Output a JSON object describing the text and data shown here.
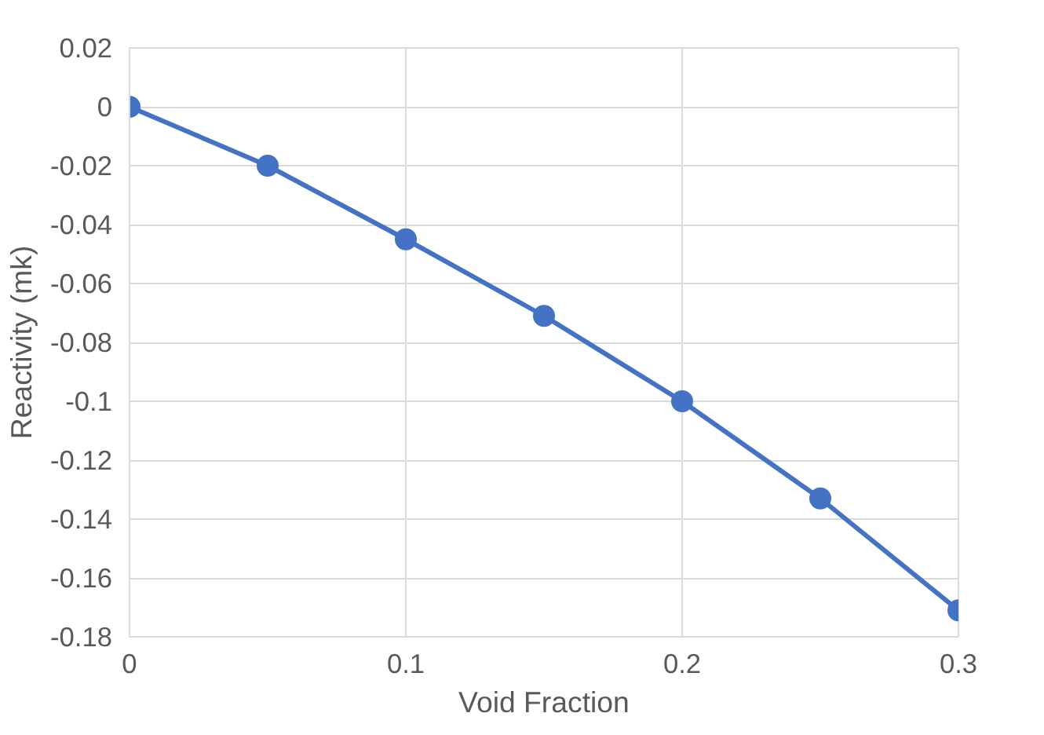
{
  "chart_data": {
    "type": "line",
    "xlabel": "Void Fraction",
    "ylabel": "Reactivity (mk)",
    "x": [
      0,
      0.05,
      0.1,
      0.15,
      0.2,
      0.25,
      0.3
    ],
    "series": [
      {
        "color": "#4472c4",
        "values": [
          0,
          -0.02,
          -0.045,
          -0.071,
          -0.1,
          -0.133,
          -0.171
        ]
      }
    ],
    "xlim": [
      0,
      0.3
    ],
    "ylim": [
      -0.18,
      0.02
    ],
    "xticks": [
      0,
      0.1,
      0.2,
      0.3
    ],
    "yticks": [
      0.02,
      0,
      -0.02,
      -0.04,
      -0.06,
      -0.08,
      -0.1,
      -0.12,
      -0.14,
      -0.16,
      -0.18
    ],
    "grid": true,
    "marker": "circle",
    "line_style": "solid"
  }
}
